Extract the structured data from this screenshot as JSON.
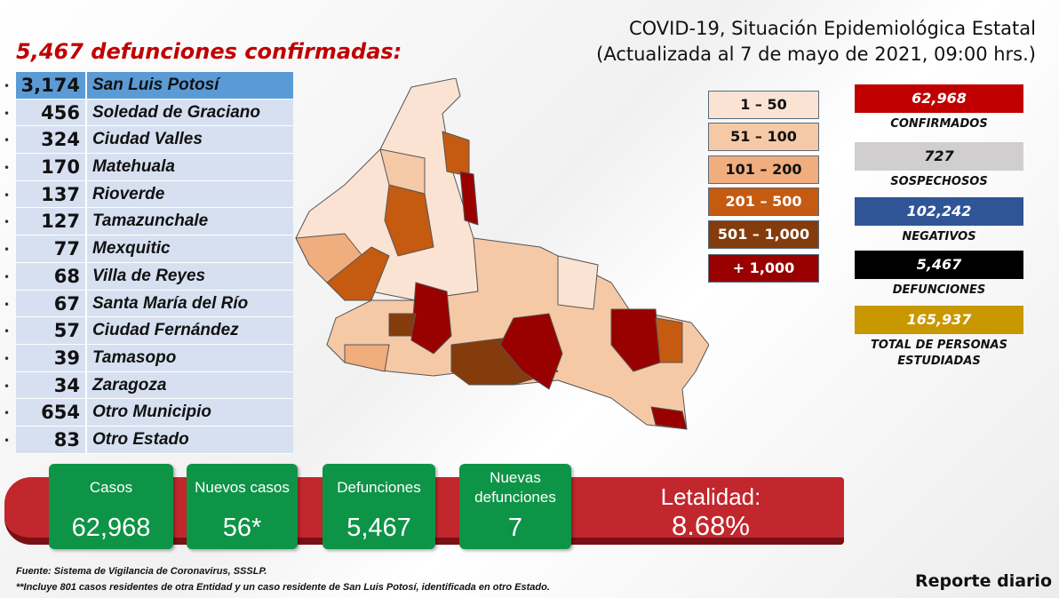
{
  "header": {
    "title_line1": "COVID-19, Situación Epidemiológica Estatal",
    "title_line2": "(Actualizada al 7 de mayo de 2021, 09:00 hrs.)"
  },
  "deaths_heading": "5,467 defunciones confirmadas:",
  "municipalities": [
    {
      "count": "3,174",
      "name": "San Luis Potosí"
    },
    {
      "count": "456",
      "name": "Soledad de Graciano"
    },
    {
      "count": "324",
      "name": "Ciudad Valles"
    },
    {
      "count": "170",
      "name": "Matehuala"
    },
    {
      "count": "137",
      "name": "Rioverde"
    },
    {
      "count": "127",
      "name": "Tamazunchale"
    },
    {
      "count": "77",
      "name": "Mexquitic"
    },
    {
      "count": "68",
      "name": "Villa de Reyes"
    },
    {
      "count": "67",
      "name": "Santa María del Río"
    },
    {
      "count": "57",
      "name": "Ciudad Fernández"
    },
    {
      "count": "39",
      "name": "Tamasopo"
    },
    {
      "count": "34",
      "name": "Zaragoza"
    },
    {
      "count": "654",
      "name": "Otro Municipio"
    },
    {
      "count": "83",
      "name": "Otro Estado"
    }
  ],
  "legend": [
    {
      "label": "1 – 50",
      "color": "#fbe3d3",
      "text": "#111"
    },
    {
      "label": "51 – 100",
      "color": "#f6c9a6",
      "text": "#111"
    },
    {
      "label": "101 – 200",
      "color": "#f0ad7e",
      "text": "#111"
    },
    {
      "label": "201 – 500",
      "color": "#c55a11",
      "text": "#fff"
    },
    {
      "label": "501 – 1,000",
      "color": "#843c0c",
      "text": "#fff"
    },
    {
      "label": "+ 1,000",
      "color": "#990000",
      "text": "#fff"
    }
  ],
  "stats": [
    {
      "value": "62,968",
      "label": "CONFIRMADOS",
      "color": "#c00000",
      "text": "#fff"
    },
    {
      "value": "727",
      "label": "SOSPECHOSOS",
      "color": "#d0cece",
      "text": "#111"
    },
    {
      "value": "102,242",
      "label": "NEGATIVOS",
      "color": "#2f5597",
      "text": "#fff"
    },
    {
      "value": "5,467",
      "label": "DEFUNCIONES",
      "color": "#000000",
      "text": "#fff"
    },
    {
      "value": "165,937",
      "label": "TOTAL DE PERSONAS ESTUDIADAS",
      "color": "#c99700",
      "text": "#fff"
    }
  ],
  "summary": [
    {
      "label": "Casos",
      "value": "62,968"
    },
    {
      "label": "Nuevos casos",
      "value": "56*"
    },
    {
      "label": "Defunciones",
      "value": "5,467"
    },
    {
      "label": "Nuevas defunciones",
      "value": "7"
    }
  ],
  "lethality": {
    "label": "Letalidad:",
    "value": "8.68%"
  },
  "footnotes": {
    "source": "Fuente: Sistema de Vigilancia de Coronavirus, SSSLP.",
    "note": "**Incluye 801 casos residentes de otra Entidad y un caso residente de San Luis Potosí, identificada en otro Estado."
  },
  "report_label": "Reporte diario"
}
